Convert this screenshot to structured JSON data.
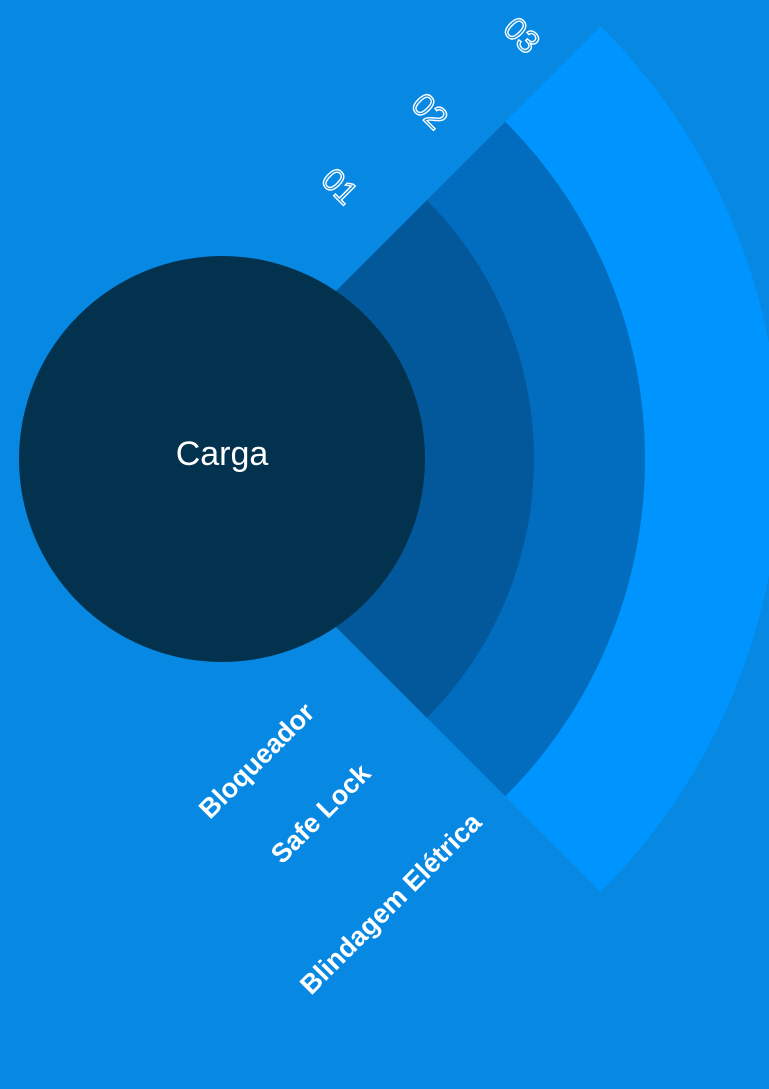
{
  "center": {
    "label": "Carga"
  },
  "layers": [
    {
      "number": "01",
      "label": "Bloqueador"
    },
    {
      "number": "02",
      "label": "Safe Lock"
    },
    {
      "number": "03",
      "label": "Blindagem Elétrica"
    }
  ]
}
